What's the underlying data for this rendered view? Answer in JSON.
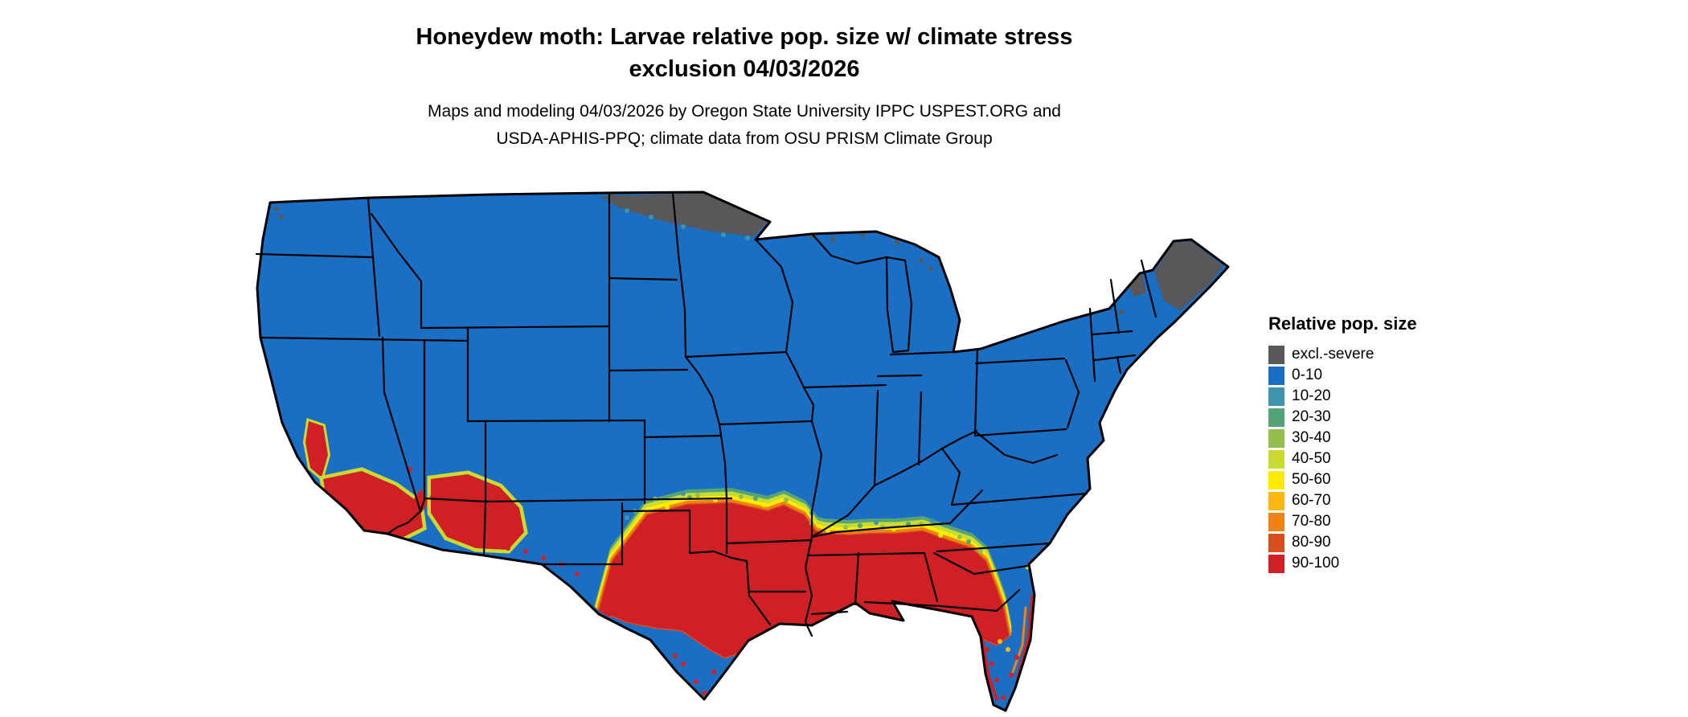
{
  "title": {
    "line1": "Honeydew moth: Larvae relative pop. size w/ climate stress",
    "line2": "exclusion 04/03/2026"
  },
  "subtitle": {
    "line1": "Maps and modeling 04/03/2026 by Oregon State University IPPC USPEST.ORG and",
    "line2": "USDA-APHIS-PPQ; climate data from OSU PRISM Climate Group"
  },
  "legend": {
    "title": "Relative pop. size",
    "entries": [
      {
        "key": "excl",
        "label": "excl.-severe",
        "color": "#58585A"
      },
      {
        "key": "p0_10",
        "label": "0-10",
        "color": "#1A6FC4"
      },
      {
        "key": "p10_20",
        "label": "10-20",
        "color": "#3F93AE"
      },
      {
        "key": "p20_30",
        "label": "20-30",
        "color": "#55A478"
      },
      {
        "key": "p30_40",
        "label": "30-40",
        "color": "#93BE4C"
      },
      {
        "key": "p40_50",
        "label": "40-50",
        "color": "#C9DA30"
      },
      {
        "key": "p50_60",
        "label": "50-60",
        "color": "#FFEC00"
      },
      {
        "key": "p60_70",
        "label": "60-70",
        "color": "#FDB813"
      },
      {
        "key": "p70_80",
        "label": "70-80",
        "color": "#F08214"
      },
      {
        "key": "p80_90",
        "label": "80-90",
        "color": "#D94E1F"
      },
      {
        "key": "p90_100",
        "label": "90-100",
        "color": "#CF2026"
      }
    ]
  },
  "map": {
    "region": "Continental United States",
    "land_fill_category": "0-10",
    "border_color": "#000000",
    "water_color": "#FFFFFF",
    "high_population_areas": "southern Texas through Louisiana, Mississippi, Alabama, Georgia and Florida; southern California; southern Arizona",
    "excluded_severe_areas": "northern Minnesota; interior Maine"
  }
}
